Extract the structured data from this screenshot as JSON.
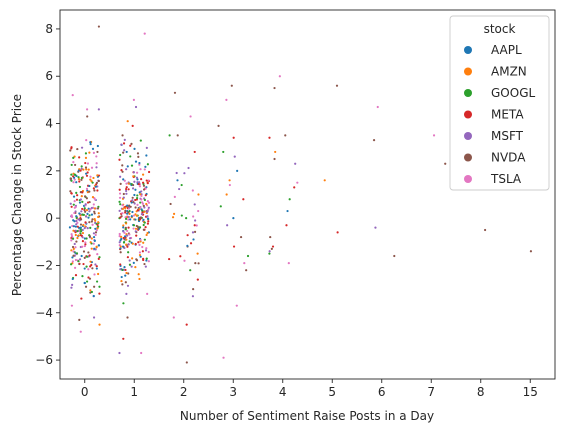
{
  "chart_data": {
    "type": "scatter",
    "xlabel": "Number of Sentiment Raise Posts in a Day",
    "ylabel": "Percentage Change in Stock Price",
    "x_categories": [
      "0",
      "1",
      "2",
      "3",
      "4",
      "5",
      "6",
      "7",
      "8",
      "15"
    ],
    "y_ticks": [
      -6,
      -4,
      -2,
      0,
      2,
      4,
      6,
      8
    ],
    "ylim": [
      -6.8,
      8.8
    ],
    "grid": false,
    "legend": {
      "title": "stock",
      "placement": "top-right",
      "entries": [
        {
          "name": "AAPL",
          "color": "#1f77b4"
        },
        {
          "name": "AMZN",
          "color": "#ff7f0e"
        },
        {
          "name": "GOOGL",
          "color": "#2ca02c"
        },
        {
          "name": "META",
          "color": "#d62728"
        },
        {
          "name": "MSFT",
          "color": "#9467bd"
        },
        {
          "name": "NVDA",
          "color": "#8c564b"
        },
        {
          "name": "TSLA",
          "color": "#e377c2"
        }
      ]
    },
    "points": [
      {
        "c": 0,
        "s": 5,
        "y": 8.1
      },
      {
        "c": 0,
        "s": 6,
        "y": 5.2
      },
      {
        "c": 0,
        "s": 4,
        "y": 4.6
      },
      {
        "c": 0,
        "s": 6,
        "y": 4.6
      },
      {
        "c": 0,
        "s": 5,
        "y": 4.3
      },
      {
        "c": 0,
        "s": 6,
        "y": 3.3
      },
      {
        "c": 0,
        "s": 3,
        "y": 3.0
      },
      {
        "c": 0,
        "s": 1,
        "y": 2.6
      },
      {
        "c": 0,
        "s": 6,
        "y": -4.8
      },
      {
        "c": 0,
        "s": 1,
        "y": -4.5
      },
      {
        "c": 0,
        "s": 4,
        "y": -4.2
      },
      {
        "c": 0,
        "s": 5,
        "y": -4.3
      },
      {
        "c": 0,
        "s": 6,
        "y": -3.7
      },
      {
        "c": 0,
        "s": 4,
        "y": -3.3
      },
      {
        "c": 0,
        "s": 2,
        "y": -2.9
      },
      {
        "c": 1,
        "s": 6,
        "y": 5.0
      },
      {
        "c": 1,
        "s": 4,
        "y": 4.7
      },
      {
        "c": 1,
        "s": 1,
        "y": 4.1
      },
      {
        "c": 1,
        "s": 6,
        "y": 7.8
      },
      {
        "c": 1,
        "s": 3,
        "y": 3.9
      },
      {
        "c": 1,
        "s": 5,
        "y": 3.5
      },
      {
        "c": 1,
        "s": 3,
        "y": -5.1
      },
      {
        "c": 1,
        "s": 6,
        "y": -5.7
      },
      {
        "c": 1,
        "s": 4,
        "y": -5.7
      },
      {
        "c": 1,
        "s": 5,
        "y": -4.2
      },
      {
        "c": 1,
        "s": 2,
        "y": -3.6
      },
      {
        "c": 1,
        "s": 4,
        "y": -3.2
      },
      {
        "c": 2,
        "s": 5,
        "y": 5.3
      },
      {
        "c": 2,
        "s": 6,
        "y": 4.3
      },
      {
        "c": 2,
        "s": 2,
        "y": 3.5
      },
      {
        "c": 2,
        "s": 5,
        "y": 3.5
      },
      {
        "c": 2,
        "s": 3,
        "y": 2.8
      },
      {
        "c": 2,
        "s": 4,
        "y": 1.9
      },
      {
        "c": 2,
        "s": 0,
        "y": 1.6
      },
      {
        "c": 2,
        "s": 2,
        "y": 1.4
      },
      {
        "c": 2,
        "s": 1,
        "y": 1.0
      },
      {
        "c": 2,
        "s": 5,
        "y": 0.6
      },
      {
        "c": 2,
        "s": 6,
        "y": 0.3
      },
      {
        "c": 2,
        "s": 2,
        "y": 0.0
      },
      {
        "c": 2,
        "s": 3,
        "y": -0.3
      },
      {
        "c": 2,
        "s": 4,
        "y": -0.6
      },
      {
        "c": 2,
        "s": 0,
        "y": -0.9
      },
      {
        "c": 2,
        "s": 5,
        "y": -1.2
      },
      {
        "c": 2,
        "s": 1,
        "y": -1.5
      },
      {
        "c": 2,
        "s": 6,
        "y": -1.8
      },
      {
        "c": 2,
        "s": 2,
        "y": -2.2
      },
      {
        "c": 2,
        "s": 3,
        "y": -2.6
      },
      {
        "c": 2,
        "s": 5,
        "y": -3.0
      },
      {
        "c": 2,
        "s": 4,
        "y": -3.3
      },
      {
        "c": 2,
        "s": 6,
        "y": -4.2
      },
      {
        "c": 2,
        "s": 3,
        "y": -4.5
      },
      {
        "c": 2,
        "s": 5,
        "y": -6.1
      },
      {
        "c": 3,
        "s": 5,
        "y": 5.6
      },
      {
        "c": 3,
        "s": 6,
        "y": 5.0
      },
      {
        "c": 3,
        "s": 5,
        "y": 3.9
      },
      {
        "c": 3,
        "s": 3,
        "y": 3.4
      },
      {
        "c": 3,
        "s": 2,
        "y": 2.8
      },
      {
        "c": 3,
        "s": 4,
        "y": 2.6
      },
      {
        "c": 3,
        "s": 0,
        "y": 2.0
      },
      {
        "c": 3,
        "s": 1,
        "y": 1.6
      },
      {
        "c": 3,
        "s": 6,
        "y": 1.4
      },
      {
        "c": 3,
        "s": 1,
        "y": 1.0
      },
      {
        "c": 3,
        "s": 3,
        "y": 0.8
      },
      {
        "c": 3,
        "s": 2,
        "y": 0.5
      },
      {
        "c": 3,
        "s": 0,
        "y": 0.0
      },
      {
        "c": 3,
        "s": 4,
        "y": -0.3
      },
      {
        "c": 3,
        "s": 5,
        "y": -0.8
      },
      {
        "c": 3,
        "s": 3,
        "y": -1.2
      },
      {
        "c": 3,
        "s": 2,
        "y": -1.6
      },
      {
        "c": 3,
        "s": 6,
        "y": -1.9
      },
      {
        "c": 3,
        "s": 5,
        "y": -2.2
      },
      {
        "c": 3,
        "s": 6,
        "y": -3.7
      },
      {
        "c": 3,
        "s": 6,
        "y": -5.9
      },
      {
        "c": 4,
        "s": 6,
        "y": 6.0
      },
      {
        "c": 4,
        "s": 5,
        "y": 5.5
      },
      {
        "c": 4,
        "s": 3,
        "y": 3.4
      },
      {
        "c": 4,
        "s": 5,
        "y": 3.5
      },
      {
        "c": 4,
        "s": 1,
        "y": 2.8
      },
      {
        "c": 4,
        "s": 4,
        "y": 2.3
      },
      {
        "c": 4,
        "s": 5,
        "y": 2.5
      },
      {
        "c": 4,
        "s": 6,
        "y": 1.5
      },
      {
        "c": 4,
        "s": 3,
        "y": 1.3
      },
      {
        "c": 4,
        "s": 2,
        "y": 0.8
      },
      {
        "c": 4,
        "s": 0,
        "y": 0.3
      },
      {
        "c": 4,
        "s": 3,
        "y": -0.3
      },
      {
        "c": 4,
        "s": 5,
        "y": -0.8
      },
      {
        "c": 4,
        "s": 3,
        "y": -1.2
      },
      {
        "c": 4,
        "s": 4,
        "y": -1.4
      },
      {
        "c": 4,
        "s": 6,
        "y": -1.9
      },
      {
        "c": 4,
        "s": 5,
        "y": -1.3
      },
      {
        "c": 4,
        "s": 2,
        "y": -1.5
      },
      {
        "c": 5,
        "s": 5,
        "y": 5.6
      },
      {
        "c": 5,
        "s": 1,
        "y": 1.6
      },
      {
        "c": 5,
        "s": 3,
        "y": -0.6
      },
      {
        "c": 6,
        "s": 6,
        "y": 4.7
      },
      {
        "c": 6,
        "s": 5,
        "y": 3.3
      },
      {
        "c": 6,
        "s": 4,
        "y": -0.4
      },
      {
        "c": 6,
        "s": 5,
        "y": -1.6
      },
      {
        "c": 7,
        "s": 6,
        "y": 3.5
      },
      {
        "c": 7,
        "s": 5,
        "y": 2.3
      },
      {
        "c": 8,
        "s": 5,
        "y": -0.5
      },
      {
        "c": 9,
        "s": 5,
        "y": -1.4
      }
    ]
  }
}
